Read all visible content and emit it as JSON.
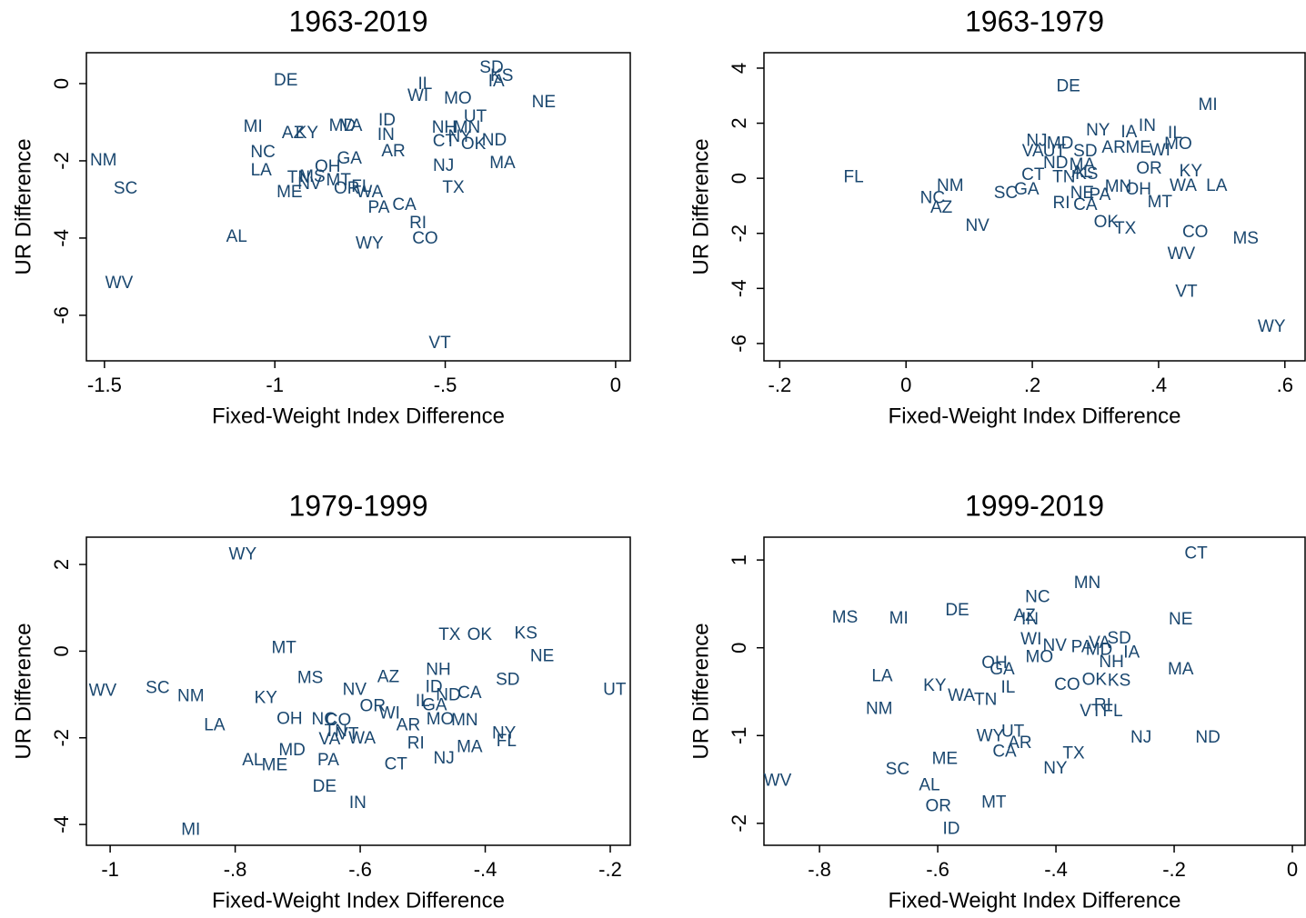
{
  "chart_data": [
    {
      "type": "scatter",
      "title": "1963-2019",
      "x_label": "Fixed-Weight Index Difference",
      "y_label": "UR Difference",
      "color": "#1a476f",
      "xlim": [
        -1.553,
        0.043
      ],
      "ylim": [
        -7.18,
        0.8
      ],
      "xticks": [
        -1.5,
        -1,
        {
          "value": -0.5,
          "label": "-.5"
        },
        0
      ],
      "yticks": [
        0,
        -2,
        -4,
        -6
      ],
      "labels": [
        "DE",
        "IL",
        "SD",
        "KS",
        "IA",
        "NE",
        "WI",
        "MO",
        "UT",
        "MI",
        "AZ",
        "KY",
        "MD",
        "VA",
        "ID",
        "IN",
        "NH",
        "MN",
        "CT",
        "NY",
        "OK",
        "ND",
        "NC",
        "NM",
        "GA",
        "AR",
        "OH",
        "NJ",
        "MA",
        "LA",
        "SC",
        "TN",
        "MS",
        "NV",
        "MT",
        "OR",
        "FL",
        "WA",
        "ME",
        "TX",
        "PA",
        "CA",
        "RI",
        "AL",
        "CO",
        "WY",
        "WV",
        "VT"
      ],
      "x": [
        -0.968,
        -0.559,
        -0.364,
        -0.334,
        -0.35,
        -0.211,
        -0.58,
        -0.463,
        -0.412,
        -1.064,
        -0.947,
        -0.906,
        -0.802,
        -0.775,
        -0.671,
        -0.674,
        -0.503,
        -0.436,
        -0.503,
        -0.457,
        -0.417,
        -0.356,
        -1.035,
        -1.503,
        -0.781,
        -0.652,
        -0.845,
        -0.505,
        -0.332,
        -1.04,
        -1.438,
        -0.93,
        -0.89,
        -0.898,
        -0.813,
        -0.789,
        -0.746,
        -0.722,
        -0.957,
        -0.476,
        -0.695,
        -0.62,
        -0.58,
        -1.112,
        -0.559,
        -0.722,
        -1.457,
        -0.516
      ],
      "y": [
        0.07,
        -0.02,
        0.4,
        0.19,
        0.05,
        -0.49,
        -0.33,
        -0.4,
        -0.87,
        -1.13,
        -1.29,
        -1.29,
        -1.11,
        -1.11,
        -0.96,
        -1.34,
        -1.15,
        -1.15,
        -1.51,
        -1.39,
        -1.58,
        -1.48,
        -1.79,
        -2.0,
        -1.95,
        -1.76,
        -2.16,
        -2.14,
        -2.07,
        -2.26,
        -2.73,
        -2.45,
        -2.42,
        -2.61,
        -2.52,
        -2.73,
        -2.68,
        -2.82,
        -2.82,
        -2.71,
        -3.22,
        -3.15,
        -3.62,
        -3.98,
        -4.02,
        -4.16,
        -5.18,
        -6.73
      ]
    },
    {
      "type": "scatter",
      "title": "1963-1979",
      "x_label": "Fixed-Weight Index Difference",
      "y_label": "UR Difference",
      "color": "#1a476f",
      "xlim": [
        -0.225,
        0.632
      ],
      "ylim": [
        -6.63,
        4.56
      ],
      "xticks": [
        {
          "value": -0.2,
          "label": "-.2"
        },
        0,
        {
          "value": 0.2,
          "label": ".2"
        },
        {
          "value": 0.4,
          "label": ".4"
        },
        {
          "value": 0.6,
          "label": ".6"
        }
      ],
      "yticks": [
        4,
        2,
        0,
        -2,
        -4,
        -6
      ],
      "labels": [
        "DE",
        "MI",
        "NY",
        "IA",
        "IN",
        "IL",
        "NJ",
        "MD",
        "VA",
        "UT",
        "SD",
        "AR",
        "ME",
        "WI",
        "MO",
        "ND",
        "MA",
        "AL",
        "KS",
        "CT",
        "TN",
        "OR",
        "KY",
        "FL",
        "NM",
        "NC",
        "AZ",
        "SC",
        "GA",
        "WA",
        "LA",
        "MN",
        "OH",
        "NE",
        "PA",
        "RI",
        "CA",
        "MT",
        "NV",
        "OK",
        "TX",
        "CO",
        "MS",
        "WV",
        "VT",
        "WY"
      ],
      "x": [
        0.257,
        0.478,
        0.304,
        0.353,
        0.382,
        0.426,
        0.207,
        0.244,
        0.201,
        0.235,
        0.284,
        0.329,
        0.368,
        0.402,
        0.431,
        0.237,
        0.279,
        0.279,
        0.286,
        0.201,
        0.25,
        0.385,
        0.451,
        -0.083,
        0.07,
        0.042,
        0.056,
        0.158,
        0.191,
        0.439,
        0.492,
        0.336,
        0.368,
        0.279,
        0.307,
        0.246,
        0.284,
        0.402,
        0.113,
        0.317,
        0.347,
        0.458,
        0.538,
        0.436,
        0.444,
        0.579
      ],
      "y": [
        3.33,
        2.64,
        1.72,
        1.65,
        1.88,
        1.62,
        1.35,
        1.25,
        0.96,
        0.96,
        0.96,
        1.09,
        1.09,
        0.99,
        1.22,
        0.53,
        0.46,
        0.2,
        0.13,
        0.1,
        0.03,
        0.33,
        0.23,
        0.03,
        -0.3,
        -0.73,
        -1.09,
        -0.56,
        -0.43,
        -0.3,
        -0.3,
        -0.33,
        -0.43,
        -0.56,
        -0.63,
        -0.92,
        -0.99,
        -0.89,
        -1.75,
        -1.62,
        -1.85,
        -1.98,
        -2.21,
        -2.77,
        -4.13,
        -5.41
      ]
    },
    {
      "type": "scatter",
      "title": "1979-1999",
      "x_label": "Fixed-Weight Index Difference",
      "y_label": "UR Difference",
      "color": "#1a476f",
      "xlim": [
        -1.038,
        -0.168
      ],
      "ylim": [
        -4.48,
        2.63
      ],
      "xticks": [
        -1,
        {
          "value": -0.8,
          "label": "-.8"
        },
        {
          "value": -0.6,
          "label": "-.6"
        },
        {
          "value": -0.4,
          "label": "-.4"
        },
        {
          "value": -0.2,
          "label": "-.2"
        }
      ],
      "yticks": [
        2,
        0,
        -2,
        -4
      ],
      "labels": [
        "WY",
        "TX",
        "OK",
        "KS",
        "NE",
        "MT",
        "NH",
        "MS",
        "AZ",
        "SD",
        "NV",
        "ID",
        "ND",
        "CA",
        "WV",
        "SC",
        "NM",
        "UT",
        "KY",
        "OR",
        "IL",
        "GA",
        "LA",
        "OH",
        "NC",
        "CO",
        "WI",
        "MO",
        "MN",
        "AR",
        "TN",
        "VT",
        "NY",
        "FL",
        "VA",
        "WA",
        "RI",
        "MA",
        "NJ",
        "AL",
        "ME",
        "MD",
        "PA",
        "CT",
        "DE",
        "IN",
        "MI"
      ],
      "x": [
        -0.788,
        -0.457,
        -0.409,
        -0.335,
        -0.309,
        -0.722,
        -0.475,
        -0.68,
        -0.555,
        -0.364,
        -0.609,
        -0.482,
        -0.459,
        -0.425,
        -1.012,
        -0.924,
        -0.871,
        -0.193,
        -0.751,
        -0.58,
        -0.5,
        -0.481,
        -0.833,
        -0.713,
        -0.658,
        -0.635,
        -0.553,
        -0.472,
        -0.433,
        -0.523,
        -0.639,
        -0.62,
        -0.37,
        -0.366,
        -0.649,
        -0.597,
        -0.511,
        -0.425,
        -0.466,
        -0.772,
        -0.737,
        -0.709,
        -0.651,
        -0.543,
        -0.657,
        -0.604,
        -0.871
      ],
      "y": [
        2.22,
        0.36,
        0.36,
        0.4,
        -0.13,
        0.06,
        -0.44,
        -0.63,
        -0.61,
        -0.67,
        -0.9,
        -0.84,
        -1.03,
        -0.98,
        -0.92,
        -0.86,
        -1.05,
        -0.9,
        -1.09,
        -1.28,
        -1.17,
        -1.26,
        -1.72,
        -1.57,
        -1.59,
        -1.61,
        -1.45,
        -1.59,
        -1.61,
        -1.72,
        -1.86,
        -1.93,
        -1.91,
        -2.09,
        -2.05,
        -2.03,
        -2.14,
        -2.22,
        -2.49,
        -2.53,
        -2.64,
        -2.3,
        -2.53,
        -2.62,
        -3.14,
        -3.52,
        -4.13
      ]
    },
    {
      "type": "scatter",
      "title": "1999-2019",
      "x_label": "Fixed-Weight Index Difference",
      "y_label": "UR Difference",
      "color": "#1a476f",
      "xlim": [
        -0.894,
        0.0215
      ],
      "ylim": [
        -2.25,
        1.26
      ],
      "xticks": [
        {
          "value": -0.8,
          "label": "-.8"
        },
        {
          "value": -0.6,
          "label": "-.6"
        },
        {
          "value": -0.4,
          "label": "-.4"
        },
        {
          "value": -0.2,
          "label": "-.2"
        },
        0
      ],
      "yticks": [
        1,
        0,
        -1,
        -2
      ],
      "labels": [
        "CT",
        "MN",
        "NC",
        "NE",
        "MS",
        "MI",
        "DE",
        "AZ",
        "IN",
        "SD",
        "WI",
        "NV",
        "PA",
        "VA",
        "MD",
        "IA",
        "MO",
        "NH",
        "OH",
        "GA",
        "MA",
        "LA",
        "OK",
        "KS",
        "KY",
        "WA",
        "IL",
        "CO",
        "TN",
        "NM",
        "RI",
        "VT",
        "FL",
        "NJ",
        "ND",
        "WY",
        "UT",
        "AR",
        "CA",
        "TX",
        "NY",
        "ME",
        "SC",
        "WV",
        "AL",
        "MT",
        "OR",
        "ID"
      ],
      "x": [
        -0.163,
        -0.347,
        -0.431,
        -0.189,
        -0.757,
        -0.666,
        -0.567,
        -0.453,
        -0.444,
        -0.293,
        -0.442,
        -0.402,
        -0.356,
        -0.326,
        -0.327,
        -0.272,
        -0.428,
        -0.306,
        -0.504,
        -0.491,
        -0.189,
        -0.694,
        -0.335,
        -0.293,
        -0.605,
        -0.56,
        -0.481,
        -0.381,
        -0.519,
        -0.699,
        -0.321,
        -0.341,
        -0.304,
        -0.256,
        -0.143,
        -0.511,
        -0.473,
        -0.461,
        -0.487,
        -0.37,
        -0.401,
        -0.588,
        -0.668,
        -0.871,
        -0.614,
        -0.505,
        -0.599,
        -0.577
      ],
      "y": [
        1.07,
        0.73,
        0.57,
        0.32,
        0.34,
        0.33,
        0.42,
        0.36,
        0.32,
        0.1,
        0.09,
        0.02,
        0,
        0.05,
        -0.03,
        -0.06,
        -0.11,
        -0.17,
        -0.18,
        -0.25,
        -0.25,
        -0.33,
        -0.37,
        -0.38,
        -0.44,
        -0.55,
        -0.46,
        -0.43,
        -0.6,
        -0.7,
        -0.66,
        -0.73,
        -0.73,
        -1.03,
        -1.03,
        -1.01,
        -0.96,
        -1.09,
        -1.19,
        -1.21,
        -1.38,
        -1.27,
        -1.39,
        -1.52,
        -1.57,
        -1.77,
        -1.81,
        -2.07
      ]
    }
  ]
}
